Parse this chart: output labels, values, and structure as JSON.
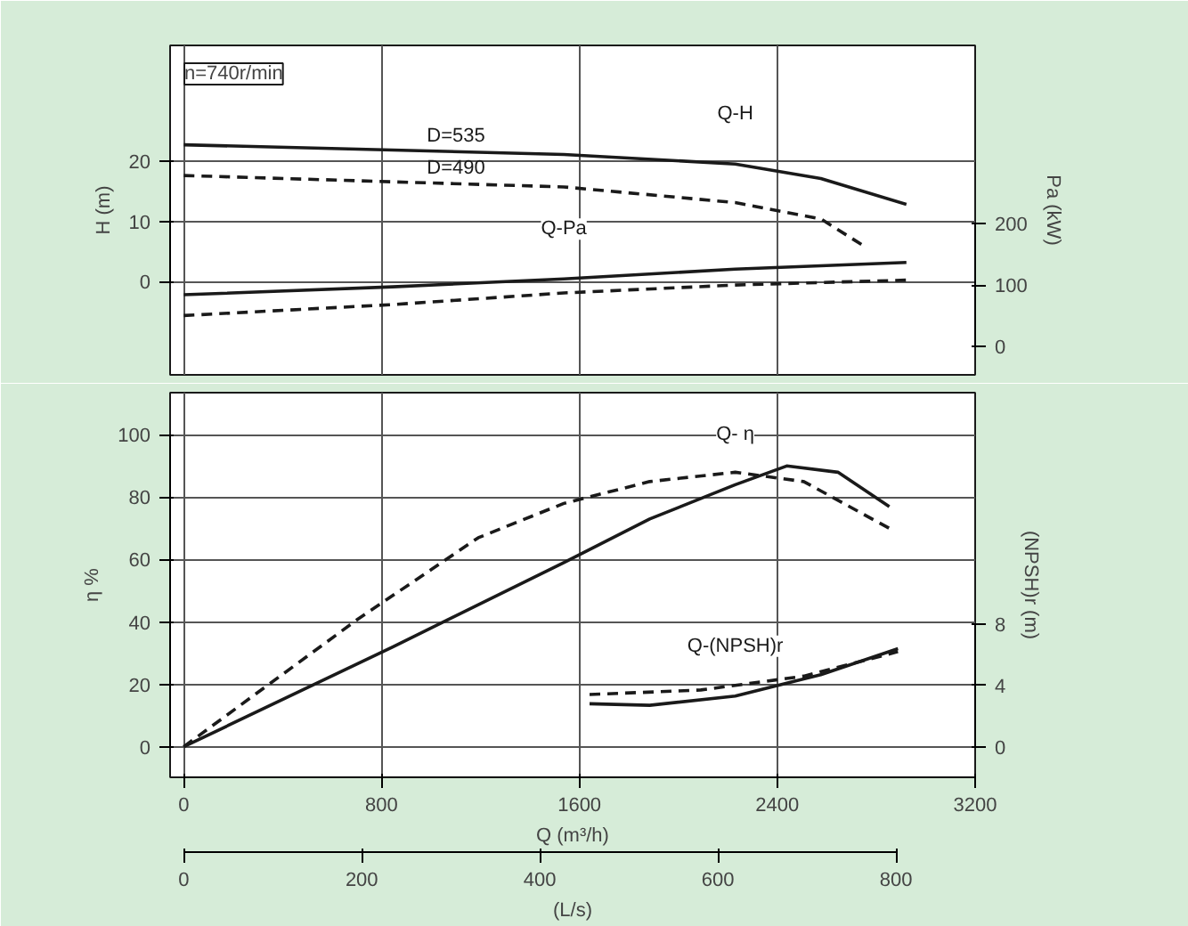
{
  "chart_data": [
    {
      "type": "line",
      "ylabel": "H (m)",
      "y2label": "Pa (kW)",
      "xlim": [
        -55,
        3200
      ],
      "ylim": [
        -15.5,
        39.2
      ],
      "yticks": [
        0,
        10,
        20
      ],
      "y2lim": [
        -47,
        492
      ],
      "y2ticks": [
        0,
        100,
        200
      ],
      "tick_labels": "y",
      "grid": true,
      "marker": "none",
      "series": [
        {
          "name": "Q-H",
          "color": "#1a1a1a",
          "line_style": "solid",
          "x": [
            0,
            1537,
            2230,
            2576,
            2922
          ],
          "values": [
            22.7,
            21.1,
            19.5,
            17.1,
            12.8
          ]
        },
        {
          "color": "#1a1a1a",
          "line_style": "dashed",
          "x": [
            0,
            1537,
            2230,
            2576,
            2750
          ],
          "values": [
            17.6,
            15.7,
            13.1,
            10.4,
            5.9
          ]
        },
        {
          "name": "Q-Pa",
          "axis": "y2",
          "color": "#1a1a1a",
          "line_style": "solid",
          "x": [
            0,
            845,
            1537,
            2230,
            2922
          ],
          "values": [
            84,
            97,
            110,
            126,
            137
          ]
        },
        {
          "axis": "y2",
          "color": "#1a1a1a",
          "line_style": "dashed",
          "x": [
            0,
            845,
            1537,
            2230,
            2922
          ],
          "values": [
            50,
            68,
            87,
            100,
            108
          ]
        }
      ],
      "annotations": [
        "n=740r/min",
        {
          "text": "D=535",
          "x": 983,
          "y": 21.7
        },
        {
          "text": "D=490",
          "x": 983,
          "y": 16.4
        }
      ]
    },
    {
      "type": "line",
      "xlabel": "Q (m³/h)",
      "ylabel": "η %",
      "y2label": "(NPSH)r (m)",
      "x2label": "(L/s)",
      "xlim": [
        -55,
        3200
      ],
      "xticks": [
        0,
        800,
        1600,
        2400,
        3200
      ],
      "x2lim": [
        -15.3,
        888.9
      ],
      "x2ticks": [
        0,
        200,
        400,
        600,
        800
      ],
      "ylim": [
        -9.8,
        113.5
      ],
      "yticks": [
        0,
        20,
        40,
        60,
        80,
        100
      ],
      "y2lim": [
        -2,
        23.1
      ],
      "y2ticks": [
        0,
        4,
        8
      ],
      "grid": true,
      "marker": "none",
      "series": [
        {
          "name": "Q- η",
          "color": "#1a1a1a",
          "line_style": "solid",
          "x": [
            0,
            845,
            1537,
            1884,
            2230,
            2438,
            2645,
            2853
          ],
          "values": [
            0,
            32,
            59,
            73,
            84,
            90,
            88,
            77
          ]
        },
        {
          "color": "#1a1a1a",
          "line_style": "dashed",
          "x": [
            0,
            706,
            1191,
            1537,
            1884,
            2230,
            2507,
            2853
          ],
          "values": [
            0,
            41,
            67,
            78,
            85,
            88,
            85,
            70
          ]
        },
        {
          "name": "Q-(NPSH)r",
          "axis": "y2",
          "color": "#1a1a1a",
          "line_style": "solid",
          "x": [
            1641,
            1884,
            2230,
            2576,
            2888
          ],
          "values": [
            2.8,
            2.7,
            3.3,
            4.7,
            6.4
          ]
        },
        {
          "axis": "y2",
          "color": "#1a1a1a",
          "line_style": "dashed",
          "x": [
            1641,
            2091,
            2507,
            2888
          ],
          "values": [
            3.4,
            3.7,
            4.6,
            6.2
          ]
        }
      ]
    }
  ]
}
